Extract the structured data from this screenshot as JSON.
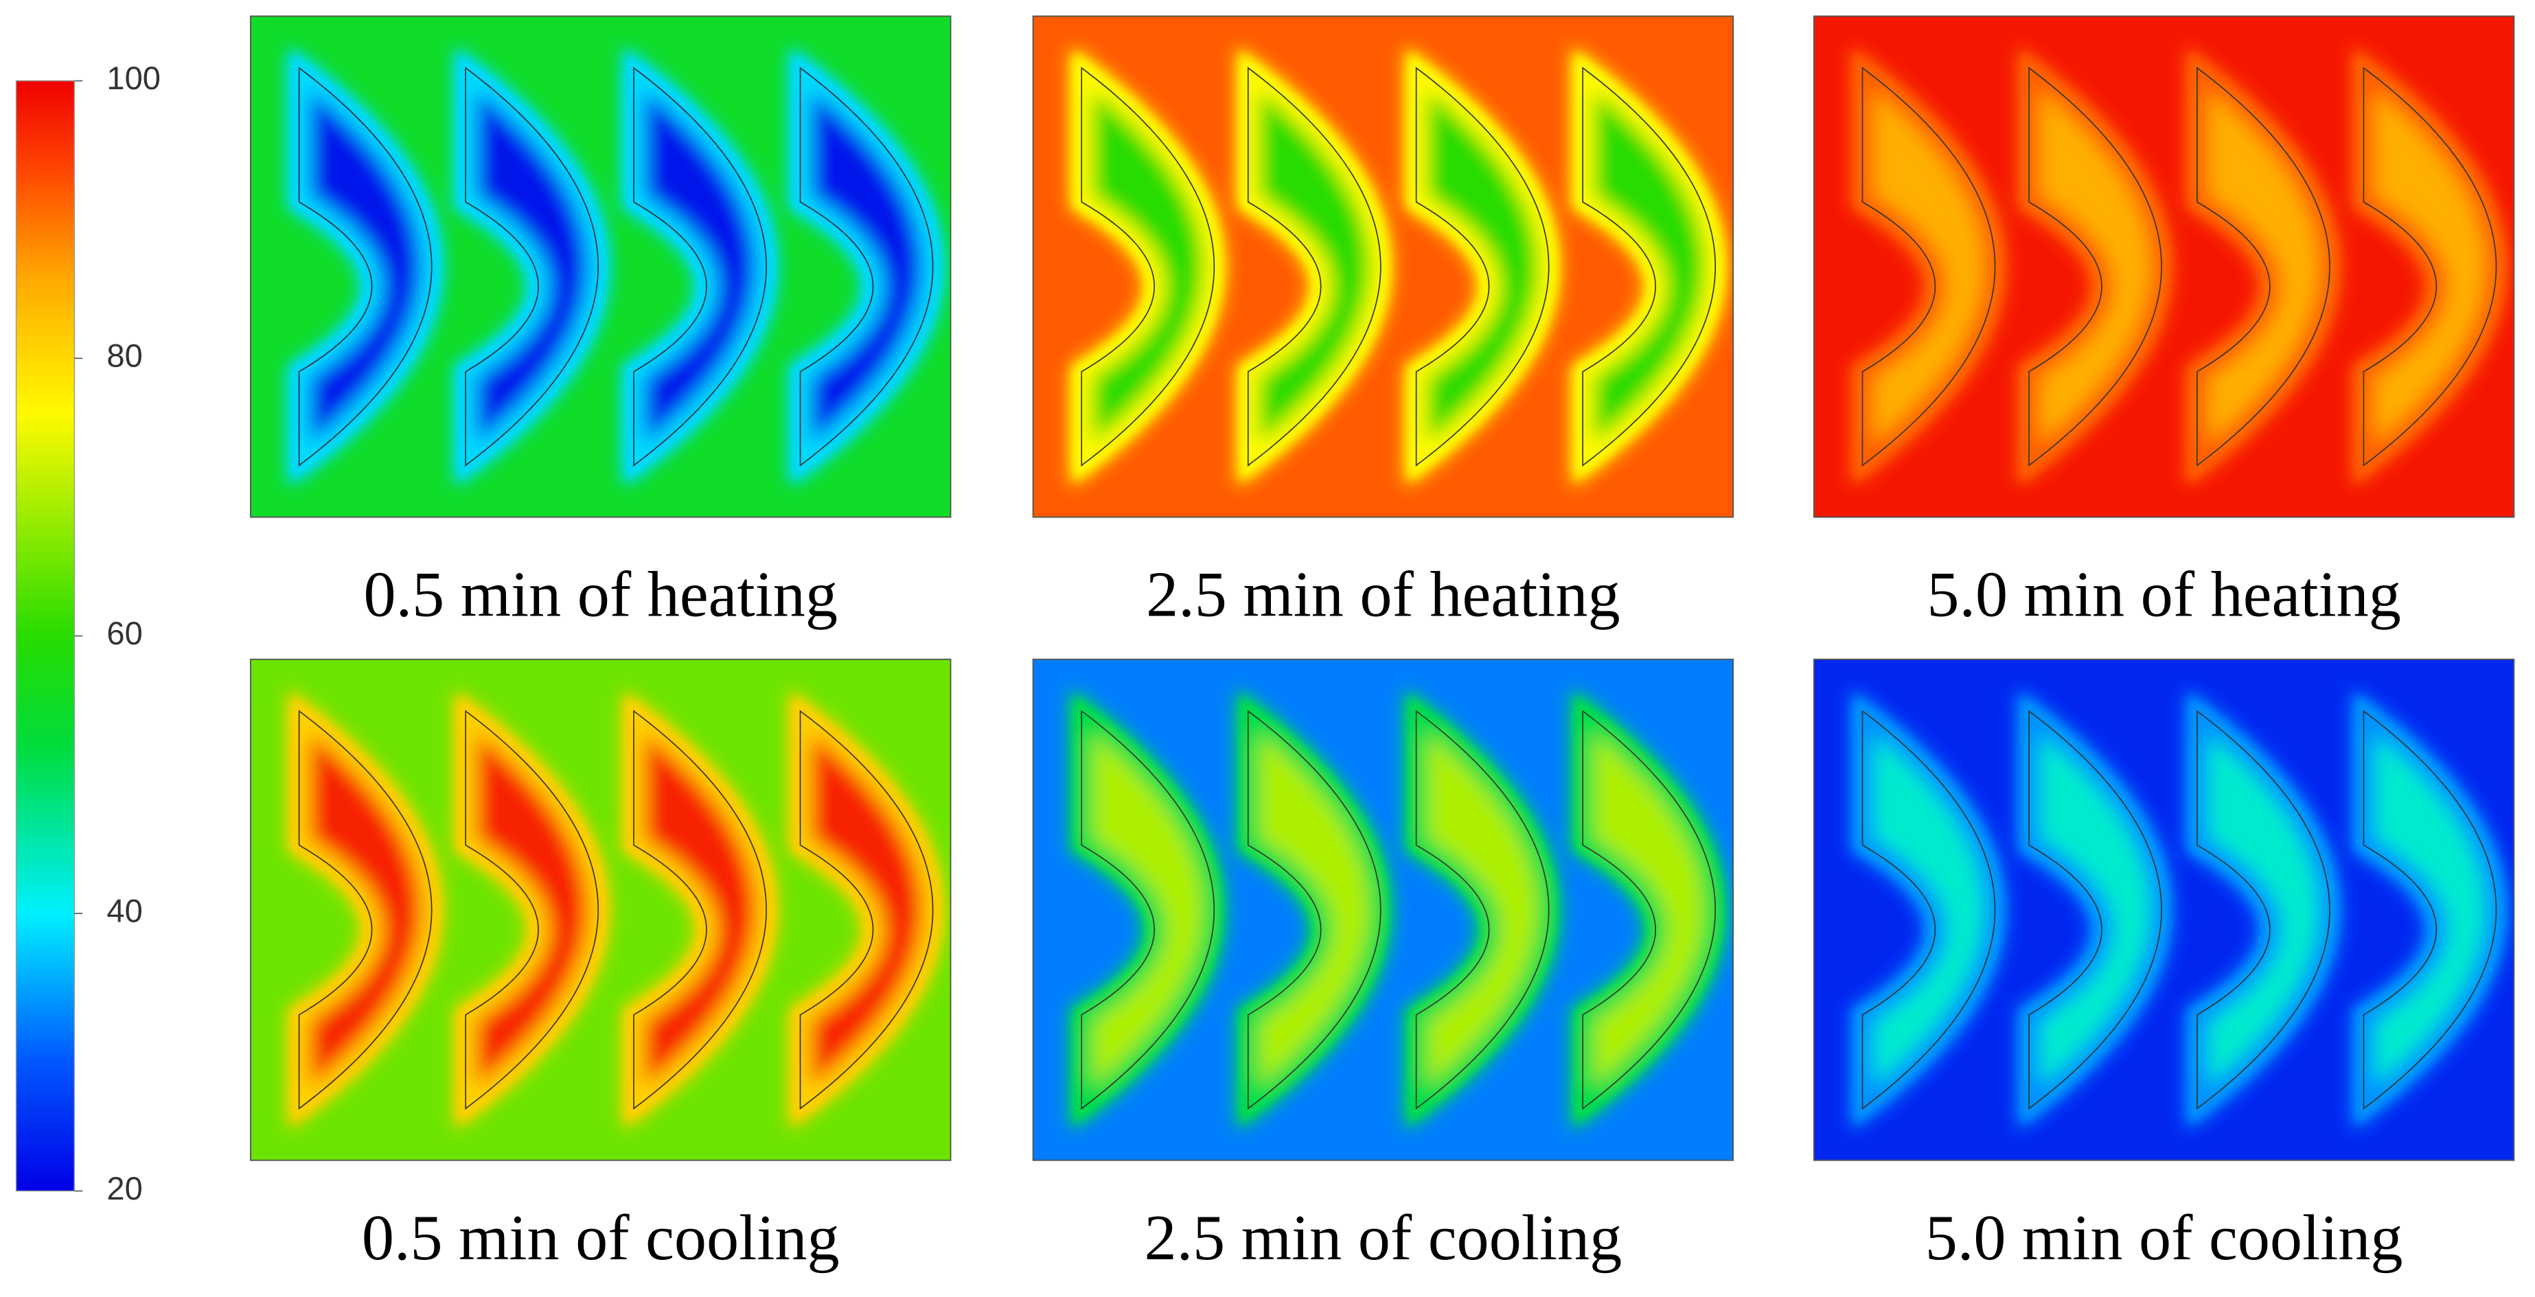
{
  "colorbar": {
    "lim": [
      20,
      100
    ],
    "ticks": [
      20,
      40,
      60,
      80,
      100
    ]
  },
  "panels": [
    {
      "caption": "0.5 min of heating",
      "background": 55,
      "core": 22
    },
    {
      "caption": "2.5 min of heating",
      "background": 92,
      "core": 60
    },
    {
      "caption": "5.0 min of heating",
      "background": 98,
      "core": 85
    },
    {
      "caption": "0.5 min of cooling",
      "background": 65,
      "core": 97
    },
    {
      "caption": "2.5 min of cooling",
      "background": 32,
      "core": 70
    },
    {
      "caption": "5.0 min of cooling",
      "background": 24,
      "core": 43
    }
  ]
}
